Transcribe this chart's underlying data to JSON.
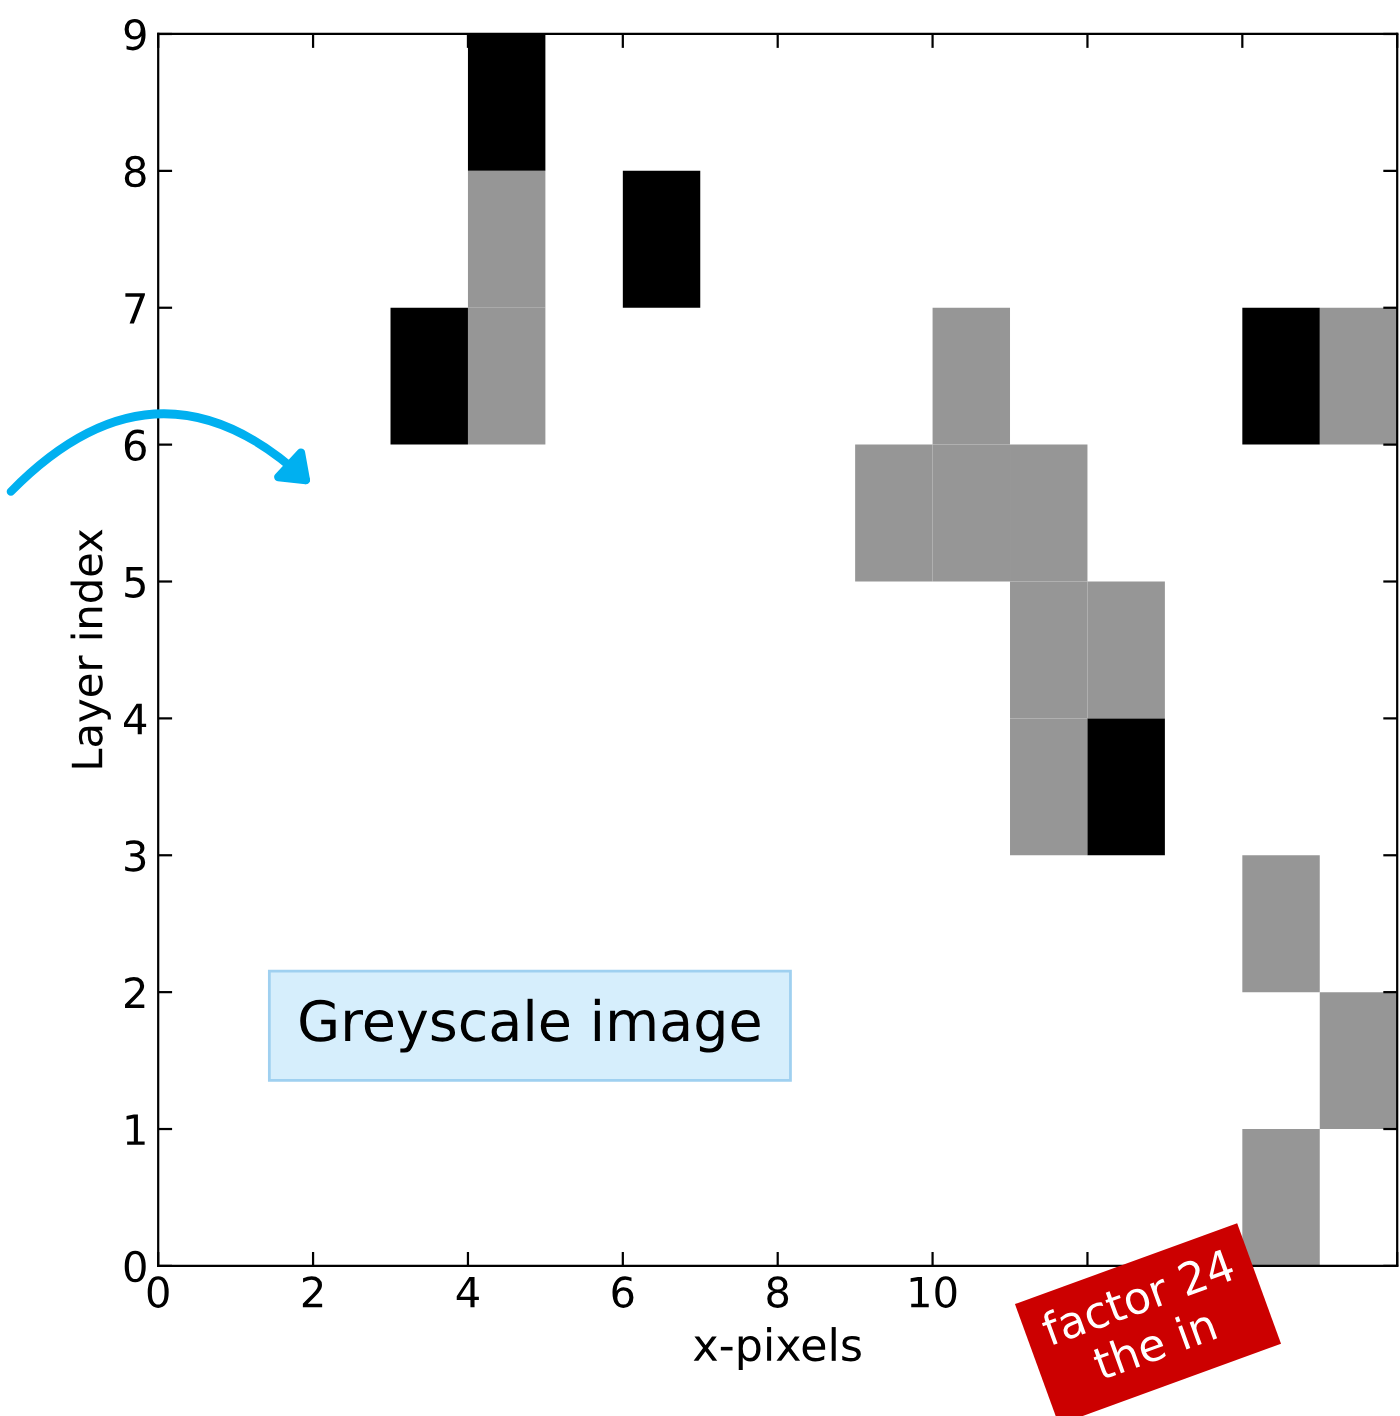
{
  "chart_data": {
    "type": "bar",
    "xlabel": "x-pixels",
    "ylabel": "Layer index",
    "series": [
      {
        "color": "#969696",
        "x": [
          4.5,
          9.5,
          10.5,
          11.5,
          12.5,
          14.5,
          15.5
        ],
        "base": [
          6,
          5,
          5,
          3,
          4,
          0,
          1
        ],
        "values": [
          1,
          1,
          1,
          1,
          1,
          1,
          1
        ]
      },
      {
        "color": "#969696",
        "x": [
          4.5,
          10.5,
          11.5,
          14.5,
          15.5
        ],
        "base": [
          7,
          6,
          4,
          2,
          6
        ],
        "values": [
          1,
          1,
          1,
          1,
          1
        ]
      },
      {
        "color": "#969696",
        "x": [
          11.5
        ],
        "base": [
          5
        ],
        "values": [
          1
        ]
      },
      {
        "color": "#000000",
        "x": [
          3.5,
          4.5,
          6.5,
          12.5,
          14.5
        ],
        "base": [
          6,
          8,
          7,
          3,
          6
        ],
        "values": [
          1,
          1,
          1,
          1,
          1
        ]
      }
    ],
    "xlim": [
      0,
      16
    ],
    "ylim": [
      0,
      9
    ],
    "xticks": [
      0,
      2,
      4,
      6,
      8,
      10,
      {
        "value": 12,
        "label": null
      },
      {
        "value": 14,
        "label": null
      },
      {
        "value": 16,
        "label": null
      }
    ],
    "yticks": [
      0,
      1,
      2,
      3,
      4,
      5,
      6,
      7,
      8,
      9
    ],
    "grid": false,
    "annotations": [
      "Greyscale image",
      "factor 24\nthe in"
    ]
  }
}
